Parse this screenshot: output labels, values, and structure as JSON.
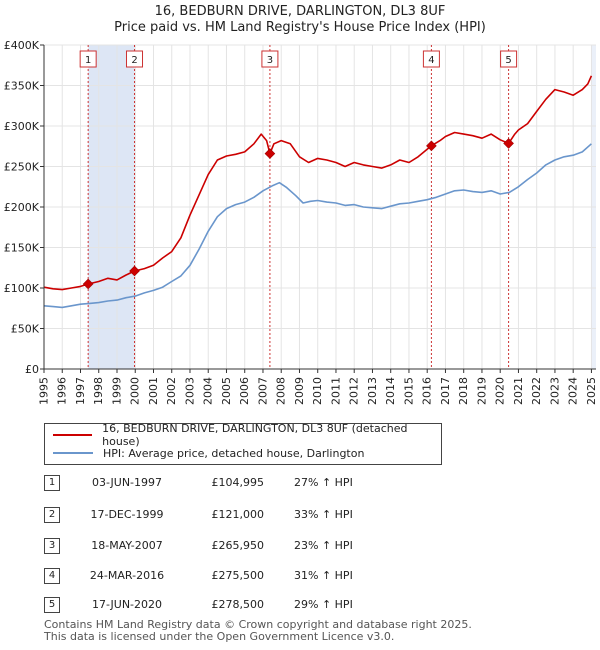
{
  "chart_data": {
    "type": "line",
    "title": "16, BEDBURN DRIVE, DARLINGTON, DL3 8UF",
    "subtitle": "Price paid vs. HM Land Registry's House Price Index (HPI)",
    "xlim": [
      1995,
      2025.25
    ],
    "ylim": [
      0,
      400000
    ],
    "y_ticks": [
      0,
      50000,
      100000,
      150000,
      200000,
      250000,
      300000,
      350000,
      400000
    ],
    "y_tick_labels": [
      "£0",
      "£50K",
      "£100K",
      "£150K",
      "£200K",
      "£250K",
      "£300K",
      "£350K",
      "£400K"
    ],
    "x_ticks": [
      1995,
      1996,
      1997,
      1998,
      1999,
      2000,
      2001,
      2002,
      2003,
      2004,
      2005,
      2006,
      2007,
      2008,
      2009,
      2010,
      2011,
      2012,
      2013,
      2014,
      2015,
      2016,
      2017,
      2018,
      2019,
      2020,
      2021,
      2022,
      2023,
      2024,
      2025
    ],
    "series": [
      {
        "name": "16, BEDBURN DRIVE, DARLINGTON, DL3 8UF (detached house)",
        "color": "#cc0000",
        "points": [
          [
            1995.0,
            101000
          ],
          [
            1995.5,
            99000
          ],
          [
            1996.0,
            98000
          ],
          [
            1996.5,
            100000
          ],
          [
            1997.0,
            102000
          ],
          [
            1997.42,
            104995
          ],
          [
            1998.0,
            108000
          ],
          [
            1998.5,
            112000
          ],
          [
            1999.0,
            110000
          ],
          [
            1999.5,
            116000
          ],
          [
            1999.96,
            121000
          ],
          [
            2000.5,
            124000
          ],
          [
            2001.0,
            128000
          ],
          [
            2001.5,
            137000
          ],
          [
            2002.0,
            145000
          ],
          [
            2002.5,
            162000
          ],
          [
            2003.0,
            190000
          ],
          [
            2003.5,
            215000
          ],
          [
            2004.0,
            240000
          ],
          [
            2004.5,
            258000
          ],
          [
            2005.0,
            263000
          ],
          [
            2005.5,
            265000
          ],
          [
            2006.0,
            268000
          ],
          [
            2006.5,
            278000
          ],
          [
            2006.9,
            290000
          ],
          [
            2007.2,
            282000
          ],
          [
            2007.38,
            265950
          ],
          [
            2007.6,
            278000
          ],
          [
            2008.0,
            282000
          ],
          [
            2008.5,
            278000
          ],
          [
            2009.0,
            262000
          ],
          [
            2009.5,
            255000
          ],
          [
            2010.0,
            260000
          ],
          [
            2010.5,
            258000
          ],
          [
            2011.0,
            255000
          ],
          [
            2011.5,
            250000
          ],
          [
            2012.0,
            255000
          ],
          [
            2012.5,
            252000
          ],
          [
            2013.0,
            250000
          ],
          [
            2013.5,
            248000
          ],
          [
            2014.0,
            252000
          ],
          [
            2014.5,
            258000
          ],
          [
            2015.0,
            255000
          ],
          [
            2015.5,
            262000
          ],
          [
            2016.23,
            275500
          ],
          [
            2016.7,
            282000
          ],
          [
            2017.0,
            287000
          ],
          [
            2017.5,
            292000
          ],
          [
            2018.0,
            290000
          ],
          [
            2018.5,
            288000
          ],
          [
            2019.0,
            285000
          ],
          [
            2019.5,
            290000
          ],
          [
            2020.0,
            283000
          ],
          [
            2020.46,
            278500
          ],
          [
            2020.8,
            290000
          ],
          [
            2021.0,
            295000
          ],
          [
            2021.5,
            303000
          ],
          [
            2022.0,
            318000
          ],
          [
            2022.5,
            333000
          ],
          [
            2023.0,
            345000
          ],
          [
            2023.5,
            342000
          ],
          [
            2024.0,
            338000
          ],
          [
            2024.5,
            345000
          ],
          [
            2024.8,
            352000
          ],
          [
            2025.0,
            362000
          ]
        ]
      },
      {
        "name": "HPI: Average price, detached house, Darlington",
        "color": "#6a96cc",
        "points": [
          [
            1995.0,
            78000
          ],
          [
            1995.5,
            77000
          ],
          [
            1996.0,
            76000
          ],
          [
            1996.5,
            78000
          ],
          [
            1997.0,
            80000
          ],
          [
            1997.5,
            81000
          ],
          [
            1998.0,
            82000
          ],
          [
            1998.5,
            84000
          ],
          [
            1999.0,
            85000
          ],
          [
            1999.5,
            88000
          ],
          [
            2000.0,
            90000
          ],
          [
            2000.5,
            94000
          ],
          [
            2001.0,
            97000
          ],
          [
            2001.5,
            101000
          ],
          [
            2002.0,
            108000
          ],
          [
            2002.5,
            115000
          ],
          [
            2003.0,
            128000
          ],
          [
            2003.5,
            148000
          ],
          [
            2004.0,
            170000
          ],
          [
            2004.5,
            188000
          ],
          [
            2005.0,
            198000
          ],
          [
            2005.5,
            203000
          ],
          [
            2006.0,
            206000
          ],
          [
            2006.5,
            212000
          ],
          [
            2007.0,
            220000
          ],
          [
            2007.5,
            226000
          ],
          [
            2007.9,
            230000
          ],
          [
            2008.3,
            224000
          ],
          [
            2008.8,
            214000
          ],
          [
            2009.2,
            205000
          ],
          [
            2009.6,
            207000
          ],
          [
            2010.0,
            208000
          ],
          [
            2010.5,
            206000
          ],
          [
            2011.0,
            205000
          ],
          [
            2011.5,
            202000
          ],
          [
            2012.0,
            203000
          ],
          [
            2012.5,
            200000
          ],
          [
            2013.0,
            199000
          ],
          [
            2013.5,
            198000
          ],
          [
            2014.0,
            201000
          ],
          [
            2014.5,
            204000
          ],
          [
            2015.0,
            205000
          ],
          [
            2015.5,
            207000
          ],
          [
            2016.0,
            209000
          ],
          [
            2016.5,
            212000
          ],
          [
            2017.0,
            216000
          ],
          [
            2017.5,
            220000
          ],
          [
            2018.0,
            221000
          ],
          [
            2018.5,
            219000
          ],
          [
            2019.0,
            218000
          ],
          [
            2019.5,
            220000
          ],
          [
            2020.0,
            216000
          ],
          [
            2020.5,
            218000
          ],
          [
            2021.0,
            225000
          ],
          [
            2021.5,
            234000
          ],
          [
            2022.0,
            242000
          ],
          [
            2022.5,
            252000
          ],
          [
            2023.0,
            258000
          ],
          [
            2023.5,
            262000
          ],
          [
            2024.0,
            264000
          ],
          [
            2024.5,
            268000
          ],
          [
            2025.0,
            278000
          ]
        ]
      }
    ],
    "sales": [
      {
        "num": "1",
        "x": 1997.42,
        "price": 104995,
        "date": "03-JUN-1997",
        "price_label": "£104,995",
        "hpi": "27% ↑ HPI"
      },
      {
        "num": "2",
        "x": 1999.96,
        "price": 121000,
        "date": "17-DEC-1999",
        "price_label": "£121,000",
        "hpi": "33% ↑ HPI"
      },
      {
        "num": "3",
        "x": 2007.38,
        "price": 265950,
        "date": "18-MAY-2007",
        "price_label": "£265,950",
        "hpi": "23% ↑ HPI"
      },
      {
        "num": "4",
        "x": 2016.23,
        "price": 275500,
        "date": "24-MAR-2016",
        "price_label": "£275,500",
        "hpi": "31% ↑ HPI"
      },
      {
        "num": "5",
        "x": 2020.46,
        "price": 278500,
        "date": "17-JUN-2020",
        "price_label": "£278,500",
        "hpi": "29% ↑ HPI"
      }
    ],
    "shaded_ranges": [
      [
        1997.42,
        1999.96
      ]
    ],
    "grid": true,
    "legend_position": "below"
  },
  "legend": {
    "property_label": "16, BEDBURN DRIVE, DARLINGTON, DL3 8UF (detached house)",
    "hpi_label": "HPI: Average price, detached house, Darlington"
  },
  "colors": {
    "property": "#cc0000",
    "hpi": "#6a96cc",
    "shade": "#dde6f5",
    "grid": "#e4e4e4"
  },
  "footer": {
    "line1": "Contains HM Land Registry data © Crown copyright and database right 2025.",
    "line2": "This data is licensed under the Open Government Licence v3.0."
  }
}
